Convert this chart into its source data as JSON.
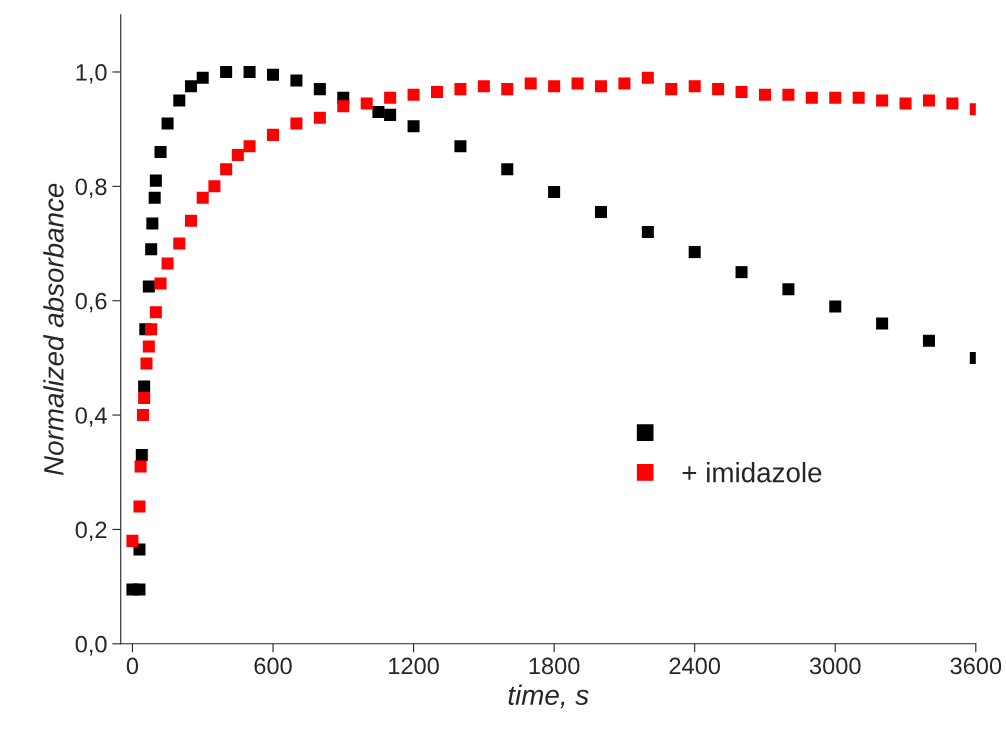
{
  "chart_data": {
    "type": "scatter",
    "xlabel": "time, s",
    "ylabel": "Normalized absorbance",
    "xlim": [
      -50,
      3600
    ],
    "xticks": [
      0,
      600,
      1200,
      1800,
      2400,
      3000,
      3600
    ],
    "ylim": [
      0,
      1.1
    ],
    "yticks": [
      {
        "value": 0,
        "label": "0,0"
      },
      {
        "value": 0.2,
        "label": "0,2"
      },
      {
        "value": 0.4,
        "label": "0,4"
      },
      {
        "value": 0.6,
        "label": "0,6"
      },
      {
        "value": 0.8,
        "label": "0,8"
      },
      {
        "value": 1.0,
        "label": "1,0"
      }
    ],
    "marker": "square",
    "grid": false,
    "legend": "center right",
    "series": [
      {
        "color": "#000000",
        "x": [
          0,
          30,
          30,
          40,
          50,
          55,
          70,
          80,
          85,
          95,
          100,
          120,
          150,
          200,
          250,
          300,
          400,
          500,
          600,
          700,
          800,
          900,
          1050,
          1100,
          1200,
          1400,
          1600,
          1800,
          2000,
          2200,
          2400,
          2600,
          2800,
          3000,
          3200,
          3400,
          3600
        ],
        "values": [
          0.095,
          0.095,
          0.165,
          0.33,
          0.45,
          0.55,
          0.625,
          0.69,
          0.735,
          0.78,
          0.81,
          0.86,
          0.91,
          0.95,
          0.975,
          0.99,
          1.0,
          1.0,
          0.995,
          0.985,
          0.97,
          0.955,
          0.93,
          0.925,
          0.905,
          0.87,
          0.83,
          0.79,
          0.755,
          0.72,
          0.685,
          0.65,
          0.62,
          0.59,
          0.56,
          0.53,
          0.5
        ]
      },
      {
        "name": "+ imidazole",
        "color": "#ff0000",
        "x": [
          0,
          30,
          35,
          45,
          50,
          60,
          70,
          80,
          100,
          120,
          150,
          200,
          250,
          300,
          350,
          400,
          450,
          500,
          600,
          700,
          800,
          900,
          1000,
          1100,
          1200,
          1300,
          1400,
          1500,
          1600,
          1700,
          1800,
          1900,
          2000,
          2100,
          2200,
          2300,
          2400,
          2500,
          2600,
          2700,
          2800,
          2900,
          3000,
          3100,
          3200,
          3300,
          3400,
          3500,
          3600
        ],
        "values": [
          0.18,
          0.24,
          0.31,
          0.4,
          0.43,
          0.49,
          0.52,
          0.55,
          0.58,
          0.63,
          0.665,
          0.7,
          0.74,
          0.78,
          0.8,
          0.83,
          0.855,
          0.87,
          0.89,
          0.91,
          0.92,
          0.94,
          0.945,
          0.955,
          0.96,
          0.965,
          0.97,
          0.975,
          0.97,
          0.98,
          0.975,
          0.98,
          0.975,
          0.98,
          0.99,
          0.97,
          0.975,
          0.97,
          0.965,
          0.96,
          0.96,
          0.955,
          0.955,
          0.955,
          0.95,
          0.945,
          0.95,
          0.945,
          0.935
        ]
      }
    ]
  }
}
